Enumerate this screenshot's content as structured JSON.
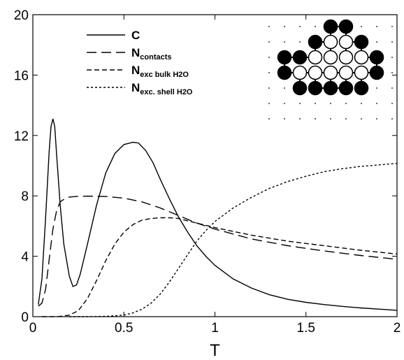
{
  "chart_data": {
    "type": "line",
    "xlabel": "T",
    "ylabel": "",
    "xlim": [
      0,
      2
    ],
    "ylim": [
      0,
      20
    ],
    "xticks": [
      {
        "value": 0,
        "label": "0"
      },
      {
        "value": 0.5,
        "label": "0.5"
      },
      {
        "value": 1,
        "label": "1"
      },
      {
        "value": 1.5,
        "label": "1.5"
      },
      {
        "value": 2,
        "label": "2"
      }
    ],
    "yticks": [
      {
        "value": 0,
        "label": "0"
      },
      {
        "value": 4,
        "label": "4"
      },
      {
        "value": 8,
        "label": "8"
      },
      {
        "value": 12,
        "label": "12"
      },
      {
        "value": 16,
        "label": "16"
      },
      {
        "value": 20,
        "label": "20"
      }
    ],
    "grid": false,
    "legend_position": "top-left",
    "series": [
      {
        "name": "C",
        "name_subscript": "",
        "dash": "solid",
        "x": [
          0.03,
          0.05,
          0.07,
          0.09,
          0.1,
          0.11,
          0.12,
          0.13,
          0.15,
          0.17,
          0.2,
          0.22,
          0.24,
          0.26,
          0.3,
          0.35,
          0.4,
          0.45,
          0.5,
          0.55,
          0.58,
          0.62,
          0.66,
          0.7,
          0.75,
          0.8,
          0.85,
          0.9,
          0.95,
          1.0,
          1.1,
          1.2,
          1.3,
          1.4,
          1.5,
          1.6,
          1.7,
          1.8,
          1.9,
          2.0
        ],
        "y": [
          0.8,
          2.5,
          6.5,
          11.0,
          12.6,
          13.1,
          12.6,
          10.8,
          7.4,
          4.8,
          2.7,
          2.0,
          2.1,
          2.8,
          4.8,
          7.4,
          9.5,
          10.8,
          11.4,
          11.55,
          11.5,
          11.0,
          10.2,
          9.1,
          7.8,
          6.6,
          5.6,
          4.7,
          4.0,
          3.4,
          2.5,
          1.9,
          1.45,
          1.15,
          0.95,
          0.8,
          0.68,
          0.58,
          0.5,
          0.42
        ]
      },
      {
        "name": "N",
        "name_subscript": "contacts",
        "dash": "long",
        "x": [
          0.03,
          0.05,
          0.07,
          0.09,
          0.11,
          0.13,
          0.15,
          0.18,
          0.2,
          0.25,
          0.3,
          0.4,
          0.5,
          0.6,
          0.7,
          0.8,
          0.9,
          1.0,
          1.2,
          1.4,
          1.6,
          1.8,
          2.0
        ],
        "y": [
          0.7,
          0.9,
          1.8,
          3.8,
          5.8,
          7.0,
          7.6,
          7.85,
          7.92,
          7.97,
          7.98,
          7.96,
          7.85,
          7.6,
          7.2,
          6.7,
          6.2,
          5.8,
          5.15,
          4.7,
          4.35,
          4.05,
          3.8
        ]
      },
      {
        "name": "N",
        "name_subscript": "exc bulk H2O",
        "dash": "medium",
        "x": [
          0.05,
          0.1,
          0.15,
          0.2,
          0.25,
          0.3,
          0.35,
          0.4,
          0.45,
          0.5,
          0.55,
          0.6,
          0.65,
          0.7,
          0.75,
          0.8,
          0.85,
          0.9,
          0.95,
          1.0,
          1.2,
          1.4,
          1.6,
          1.8,
          2.0
        ],
        "y": [
          0.0,
          0.0,
          0.02,
          0.1,
          0.4,
          1.2,
          2.4,
          3.7,
          4.8,
          5.6,
          6.1,
          6.4,
          6.5,
          6.55,
          6.55,
          6.5,
          6.35,
          6.2,
          6.05,
          5.9,
          5.4,
          5.0,
          4.7,
          4.4,
          4.15
        ]
      },
      {
        "name": "N",
        "name_subscript": "exc. shell H2O",
        "dash": "short",
        "x": [
          0.2,
          0.3,
          0.4,
          0.5,
          0.55,
          0.6,
          0.65,
          0.7,
          0.75,
          0.8,
          0.85,
          0.9,
          0.95,
          1.0,
          1.1,
          1.2,
          1.3,
          1.4,
          1.5,
          1.6,
          1.7,
          1.8,
          1.9,
          2.0
        ],
        "y": [
          0.0,
          0.0,
          0.02,
          0.1,
          0.25,
          0.5,
          0.9,
          1.5,
          2.3,
          3.2,
          4.1,
          5.0,
          5.7,
          6.3,
          7.2,
          7.9,
          8.5,
          8.95,
          9.3,
          9.6,
          9.8,
          9.95,
          10.05,
          10.15
        ]
      }
    ]
  },
  "inset": {
    "lattice_size": 9,
    "residues": [
      {
        "col": 4,
        "row": 0,
        "filled": true
      },
      {
        "col": 5,
        "row": 0,
        "filled": true
      },
      {
        "col": 3,
        "row": 1,
        "filled": true
      },
      {
        "col": 4,
        "row": 1,
        "filled": false
      },
      {
        "col": 5,
        "row": 1,
        "filled": false
      },
      {
        "col": 6,
        "row": 1,
        "filled": true
      },
      {
        "col": 1,
        "row": 2,
        "filled": true
      },
      {
        "col": 2,
        "row": 2,
        "filled": true
      },
      {
        "col": 3,
        "row": 2,
        "filled": false
      },
      {
        "col": 4,
        "row": 2,
        "filled": false
      },
      {
        "col": 5,
        "row": 2,
        "filled": false
      },
      {
        "col": 6,
        "row": 2,
        "filled": false
      },
      {
        "col": 7,
        "row": 2,
        "filled": true
      },
      {
        "col": 1,
        "row": 3,
        "filled": true
      },
      {
        "col": 2,
        "row": 3,
        "filled": false
      },
      {
        "col": 3,
        "row": 3,
        "filled": false
      },
      {
        "col": 4,
        "row": 3,
        "filled": false
      },
      {
        "col": 5,
        "row": 3,
        "filled": false
      },
      {
        "col": 6,
        "row": 3,
        "filled": false
      },
      {
        "col": 7,
        "row": 3,
        "filled": true
      },
      {
        "col": 2,
        "row": 4,
        "filled": true
      },
      {
        "col": 3,
        "row": 4,
        "filled": true
      },
      {
        "col": 4,
        "row": 4,
        "filled": true
      },
      {
        "col": 5,
        "row": 4,
        "filled": true
      },
      {
        "col": 6,
        "row": 4,
        "filled": true
      }
    ],
    "bonds": [
      [
        [
          4,
          0
        ],
        [
          5,
          0
        ]
      ],
      [
        [
          4,
          0
        ],
        [
          4,
          1
        ]
      ],
      [
        [
          5,
          0
        ],
        [
          5,
          1
        ]
      ],
      [
        [
          3,
          1
        ],
        [
          4,
          1
        ]
      ],
      [
        [
          5,
          1
        ],
        [
          6,
          1
        ]
      ],
      [
        [
          3,
          1
        ],
        [
          3,
          2
        ]
      ],
      [
        [
          6,
          1
        ],
        [
          6,
          2
        ]
      ],
      [
        [
          1,
          2
        ],
        [
          2,
          2
        ]
      ],
      [
        [
          2,
          2
        ],
        [
          3,
          2
        ]
      ],
      [
        [
          4,
          1
        ],
        [
          4,
          2
        ]
      ],
      [
        [
          5,
          1
        ],
        [
          5,
          2
        ]
      ],
      [
        [
          6,
          2
        ],
        [
          7,
          2
        ]
      ],
      [
        [
          1,
          2
        ],
        [
          1,
          3
        ]
      ],
      [
        [
          7,
          2
        ],
        [
          7,
          3
        ]
      ],
      [
        [
          1,
          3
        ],
        [
          2,
          3
        ]
      ],
      [
        [
          2,
          3
        ],
        [
          3,
          3
        ]
      ],
      [
        [
          3,
          3
        ],
        [
          4,
          3
        ]
      ],
      [
        [
          4,
          3
        ],
        [
          5,
          3
        ]
      ],
      [
        [
          5,
          3
        ],
        [
          6,
          3
        ]
      ],
      [
        [
          6,
          3
        ],
        [
          7,
          3
        ]
      ],
      [
        [
          2,
          3
        ],
        [
          2,
          4
        ]
      ],
      [
        [
          3,
          3
        ],
        [
          3,
          4
        ]
      ],
      [
        [
          4,
          3
        ],
        [
          4,
          4
        ]
      ],
      [
        [
          5,
          3
        ],
        [
          5,
          4
        ]
      ],
      [
        [
          6,
          3
        ],
        [
          6,
          4
        ]
      ],
      [
        [
          3,
          4
        ],
        [
          4,
          4
        ]
      ],
      [
        [
          4,
          4
        ],
        [
          5,
          4
        ]
      ]
    ]
  }
}
